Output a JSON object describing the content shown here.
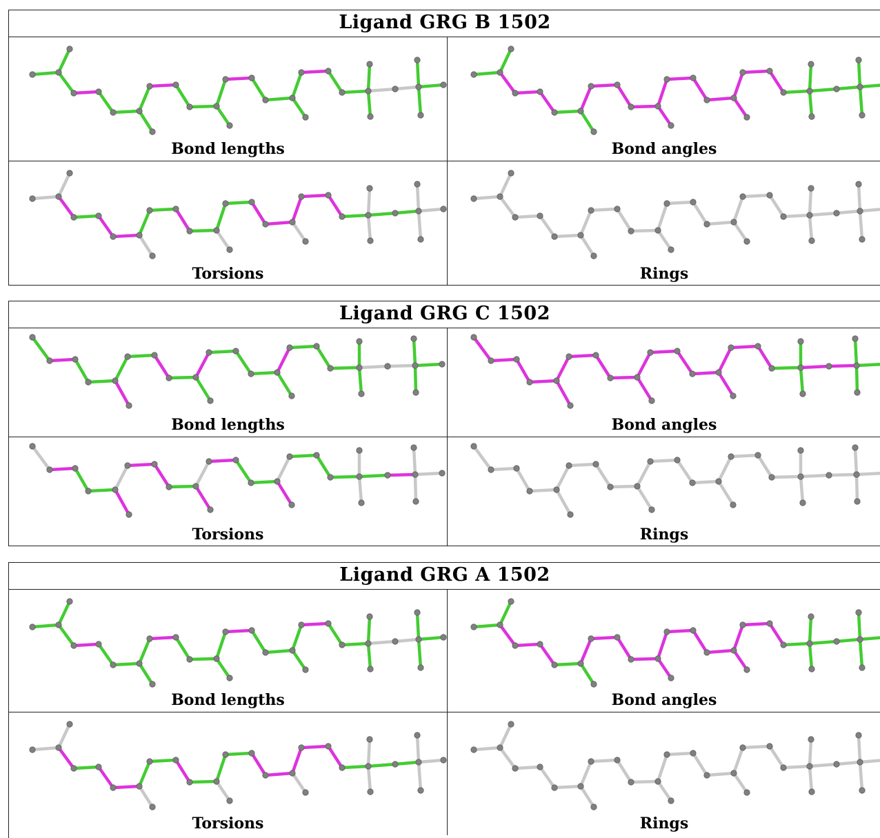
{
  "colors": {
    "magenta": "#dd33dd",
    "green": "#44cc33",
    "gray_bond": "#c8c8c8",
    "atom": "#808080",
    "border": "#222222"
  },
  "panels": [
    {
      "title": "Ligand GRG B 1502",
      "cells": [
        {
          "label": "Bond lengths",
          "variant": "B",
          "pattern": "lengths"
        },
        {
          "label": "Bond angles",
          "variant": "B",
          "pattern": "angles"
        },
        {
          "label": "Torsions",
          "variant": "B",
          "pattern": "torsions"
        },
        {
          "label": "Rings",
          "variant": "B",
          "pattern": "rings"
        }
      ]
    },
    {
      "title": "Ligand GRG C 1502",
      "cells": [
        {
          "label": "Bond lengths",
          "variant": "C",
          "pattern": "lengths"
        },
        {
          "label": "Bond angles",
          "variant": "C",
          "pattern": "angles"
        },
        {
          "label": "Torsions",
          "variant": "C",
          "pattern": "torsions"
        },
        {
          "label": "Rings",
          "variant": "C",
          "pattern": "rings"
        }
      ]
    },
    {
      "title": "Ligand GRG A 1502",
      "cells": [
        {
          "label": "Bond lengths",
          "variant": "B",
          "pattern": "lengths"
        },
        {
          "label": "Bond angles",
          "variant": "B",
          "pattern": "angles"
        },
        {
          "label": "Torsions",
          "variant": "B",
          "pattern": "torsions"
        },
        {
          "label": "Rings",
          "variant": "B",
          "pattern": "rings"
        }
      ]
    }
  ]
}
